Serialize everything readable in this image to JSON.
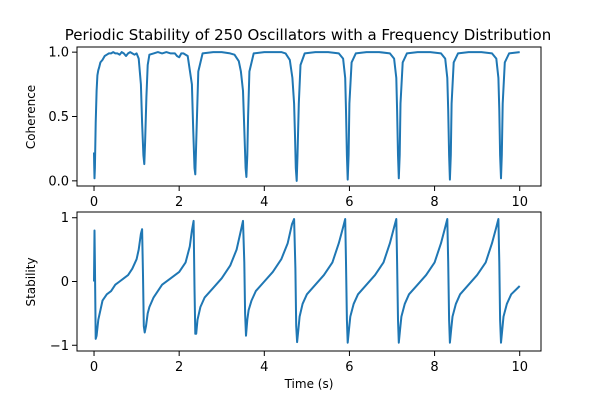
{
  "title": "Periodic Stability of 250 Oscillators with a Frequency Distribution",
  "colors": {
    "line": "#1f77b4",
    "axes": "#000000",
    "background": "#ffffff"
  },
  "chart_data": [
    {
      "type": "line",
      "title": "Periodic Stability of 250 Oscillators with a Frequency Distribution",
      "xlabel": "",
      "ylabel": "Coherence",
      "xlim": [
        -0.4,
        10.5
      ],
      "ylim": [
        -0.04,
        1.04
      ],
      "xticks": [
        0,
        2,
        4,
        6,
        8,
        10
      ],
      "xtick_labels": [
        "0",
        "2",
        "4",
        "6",
        "8",
        "10"
      ],
      "yticks": [
        0.0,
        0.5,
        1.0
      ],
      "ytick_labels": [
        "0.0",
        "0.5",
        "1.0"
      ],
      "grid": false,
      "legend": "none",
      "series": [
        {
          "x": [
            0,
            0.005,
            0.01,
            0.02,
            0.04,
            0.06,
            0.08,
            0.1,
            0.12,
            0.15,
            0.2,
            0.25,
            0.3,
            0.35,
            0.4,
            0.45,
            0.5,
            0.55,
            0.6,
            0.65,
            0.7,
            0.75,
            0.8,
            0.85,
            0.9,
            0.95,
            1.0,
            1.05,
            1.1,
            1.13,
            1.16,
            1.18,
            1.2,
            1.23,
            1.26,
            1.3,
            1.4,
            1.5,
            1.6,
            1.7,
            1.8,
            1.9,
            1.95,
            2.0,
            2.05,
            2.1,
            2.2,
            2.3,
            2.33,
            2.36,
            2.38,
            2.41,
            2.45,
            2.55,
            2.8,
            3.0,
            3.2,
            3.3,
            3.4,
            3.45,
            3.5,
            3.53,
            3.56,
            3.58,
            3.6,
            3.62,
            3.65,
            3.75,
            4.0,
            4.2,
            4.4,
            4.5,
            4.6,
            4.66,
            4.7,
            4.72,
            4.74,
            4.76,
            4.78,
            4.81,
            4.85,
            4.95,
            5.2,
            5.5,
            5.75,
            5.85,
            5.9,
            5.92,
            5.94,
            5.96,
            5.98,
            6.0,
            6.05,
            6.15,
            6.4,
            6.7,
            6.95,
            7.05,
            7.1,
            7.12,
            7.14,
            7.16,
            7.18,
            7.2,
            7.25,
            7.35,
            7.6,
            7.9,
            8.15,
            8.25,
            8.3,
            8.32,
            8.34,
            8.36,
            8.38,
            8.4,
            8.45,
            8.55,
            8.8,
            9.1,
            9.35,
            9.45,
            9.5,
            9.52,
            9.54,
            9.56,
            9.58,
            9.6,
            9.65,
            9.75,
            10.0
          ],
          "y": [
            0.22,
            0.12,
            0.02,
            0.1,
            0.45,
            0.7,
            0.82,
            0.86,
            0.88,
            0.92,
            0.94,
            0.97,
            0.98,
            0.99,
            0.99,
            1.0,
            0.99,
            0.99,
            0.98,
            1.0,
            0.99,
            0.97,
            0.99,
            1.0,
            0.99,
            0.98,
            0.99,
            0.95,
            0.75,
            0.45,
            0.2,
            0.13,
            0.3,
            0.65,
            0.9,
            0.98,
            0.99,
            1.0,
            0.99,
            1.0,
            0.99,
            0.99,
            0.97,
            0.96,
            0.99,
            0.99,
            0.97,
            0.75,
            0.4,
            0.1,
            0.05,
            0.4,
            0.85,
            0.99,
            1.0,
            1.0,
            0.99,
            0.98,
            0.93,
            0.85,
            0.7,
            0.4,
            0.1,
            0.03,
            0.2,
            0.5,
            0.85,
            0.99,
            1.0,
            1.0,
            1.0,
            0.99,
            0.94,
            0.8,
            0.6,
            0.35,
            0.1,
            0.0,
            0.2,
            0.6,
            0.9,
            0.99,
            1.0,
            1.0,
            0.99,
            0.95,
            0.8,
            0.55,
            0.2,
            0.01,
            0.2,
            0.6,
            0.92,
            0.99,
            1.0,
            1.0,
            0.99,
            0.95,
            0.8,
            0.55,
            0.2,
            0.02,
            0.2,
            0.6,
            0.92,
            0.99,
            1.0,
            1.0,
            0.99,
            0.95,
            0.8,
            0.55,
            0.2,
            0.01,
            0.2,
            0.6,
            0.92,
            0.99,
            1.0,
            1.0,
            0.99,
            0.95,
            0.8,
            0.55,
            0.2,
            0.02,
            0.2,
            0.6,
            0.92,
            0.99,
            1.0
          ]
        }
      ]
    },
    {
      "type": "line",
      "title": "",
      "xlabel": "Time (s)",
      "ylabel": "Stability",
      "xlim": [
        -0.4,
        10.5
      ],
      "ylim": [
        -1.09,
        1.09
      ],
      "xticks": [
        0,
        2,
        4,
        6,
        8,
        10
      ],
      "xtick_labels": [
        "0",
        "2",
        "4",
        "6",
        "8",
        "10"
      ],
      "yticks": [
        -1,
        0,
        1
      ],
      "ytick_labels": [
        "−1",
        "0",
        "1"
      ],
      "grid": false,
      "legend": "none",
      "series": [
        {
          "x": [
            0,
            0.01,
            0.02,
            0.04,
            0.06,
            0.1,
            0.2,
            0.3,
            0.4,
            0.5,
            0.6,
            0.7,
            0.8,
            0.9,
            1.0,
            1.05,
            1.1,
            1.13,
            1.15,
            1.17,
            1.19,
            1.22,
            1.26,
            1.3,
            1.4,
            1.6,
            1.8,
            2.0,
            2.15,
            2.25,
            2.3,
            2.34,
            2.36,
            2.38,
            2.4,
            2.43,
            2.5,
            2.6,
            2.8,
            3.0,
            3.2,
            3.35,
            3.45,
            3.5,
            3.53,
            3.55,
            3.57,
            3.6,
            3.63,
            3.7,
            3.8,
            4.0,
            4.2,
            4.4,
            4.55,
            4.65,
            4.7,
            4.73,
            4.75,
            4.77,
            4.8,
            4.83,
            4.9,
            5.0,
            5.2,
            5.4,
            5.6,
            5.75,
            5.85,
            5.9,
            5.92,
            5.94,
            5.96,
            5.99,
            6.02,
            6.1,
            6.2,
            6.4,
            6.6,
            6.8,
            6.95,
            7.05,
            7.1,
            7.12,
            7.14,
            7.16,
            7.19,
            7.22,
            7.3,
            7.4,
            7.6,
            7.8,
            8.0,
            8.15,
            8.25,
            8.3,
            8.32,
            8.34,
            8.36,
            8.39,
            8.42,
            8.5,
            8.6,
            8.8,
            9.0,
            9.2,
            9.35,
            9.45,
            9.5,
            9.52,
            9.54,
            9.56,
            9.59,
            9.62,
            9.7,
            9.8,
            10.0
          ],
          "y": [
            0.0,
            0.8,
            0.3,
            -0.9,
            -0.85,
            -0.6,
            -0.3,
            -0.2,
            -0.15,
            -0.05,
            0.0,
            0.05,
            0.1,
            0.2,
            0.35,
            0.5,
            0.75,
            0.82,
            0.1,
            -0.7,
            -0.8,
            -0.7,
            -0.5,
            -0.4,
            -0.25,
            -0.05,
            0.05,
            0.15,
            0.3,
            0.55,
            0.8,
            0.95,
            -0.1,
            -0.82,
            -0.82,
            -0.6,
            -0.4,
            -0.25,
            -0.1,
            0.05,
            0.25,
            0.5,
            0.8,
            0.95,
            0.3,
            -0.5,
            -0.85,
            -0.6,
            -0.45,
            -0.3,
            -0.15,
            0.0,
            0.15,
            0.35,
            0.6,
            0.9,
            0.98,
            0.2,
            -0.7,
            -0.95,
            -0.75,
            -0.55,
            -0.35,
            -0.2,
            -0.05,
            0.1,
            0.3,
            0.6,
            0.85,
            0.98,
            0.3,
            -0.6,
            -0.96,
            -0.75,
            -0.55,
            -0.35,
            -0.2,
            -0.05,
            0.1,
            0.3,
            0.6,
            0.85,
            0.98,
            0.3,
            -0.6,
            -0.96,
            -0.75,
            -0.55,
            -0.35,
            -0.2,
            -0.05,
            0.1,
            0.3,
            0.6,
            0.85,
            0.98,
            0.3,
            -0.6,
            -0.96,
            -0.75,
            -0.55,
            -0.35,
            -0.2,
            -0.05,
            0.1,
            0.3,
            0.6,
            0.85,
            0.98,
            0.3,
            -0.6,
            -0.96,
            -0.75,
            -0.55,
            -0.35,
            -0.2,
            -0.07
          ]
        }
      ]
    }
  ]
}
